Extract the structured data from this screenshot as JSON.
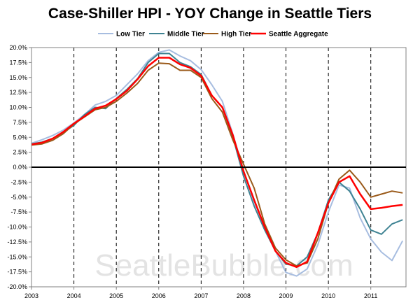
{
  "chart_data": {
    "type": "line",
    "title": "Case-Shiller HPI - YOY Change in Seattle Tiers",
    "watermark": "SeattleBubble.com",
    "xlabel": "",
    "ylabel": "",
    "x_unit": "year",
    "xlim": [
      2003,
      2011.83
    ],
    "ylim": [
      -20,
      20
    ],
    "x_ticks": [
      "2003",
      "2004",
      "2005",
      "2006",
      "2007",
      "2008",
      "2009",
      "2010",
      "2011"
    ],
    "y_ticks": [
      "20.0%",
      "17.5%",
      "15.0%",
      "12.5%",
      "10.0%",
      "7.5%",
      "5.0%",
      "2.5%",
      "0.0%",
      "-2.5%",
      "-5.0%",
      "-7.5%",
      "-10.0%",
      "-12.5%",
      "-15.0%",
      "-17.5%",
      "-20.0%"
    ],
    "y_tick_values": [
      20,
      17.5,
      15,
      12.5,
      10,
      7.5,
      5,
      2.5,
      0,
      -2.5,
      -5,
      -7.5,
      -10,
      -12.5,
      -15,
      -17.5,
      -20
    ],
    "grid": "dashed vertical lines at each year, black zero line",
    "legend_position": "top",
    "series": [
      {
        "name": "Low Tier",
        "color": "#a7bde0",
        "points": [
          [
            2003.0,
            4.0
          ],
          [
            2003.25,
            4.6
          ],
          [
            2003.5,
            5.3
          ],
          [
            2003.75,
            6.2
          ],
          [
            2004.0,
            7.4
          ],
          [
            2004.25,
            8.8
          ],
          [
            2004.5,
            10.4
          ],
          [
            2004.75,
            11.0
          ],
          [
            2005.0,
            12.0
          ],
          [
            2005.25,
            13.8
          ],
          [
            2005.5,
            15.6
          ],
          [
            2005.75,
            17.8
          ],
          [
            2006.0,
            19.2
          ],
          [
            2006.25,
            19.6
          ],
          [
            2006.5,
            18.6
          ],
          [
            2006.75,
            17.8
          ],
          [
            2007.0,
            16.3
          ],
          [
            2007.25,
            13.8
          ],
          [
            2007.5,
            11.0
          ],
          [
            2007.75,
            5.5
          ],
          [
            2008.0,
            -0.5
          ],
          [
            2008.25,
            -5.8
          ],
          [
            2008.5,
            -10.0
          ],
          [
            2008.75,
            -14.0
          ],
          [
            2009.0,
            -17.6
          ],
          [
            2009.25,
            -18.2
          ],
          [
            2009.5,
            -17.0
          ],
          [
            2009.75,
            -13.0
          ],
          [
            2010.0,
            -7.5
          ],
          [
            2010.25,
            -3.0
          ],
          [
            2010.5,
            -3.5
          ],
          [
            2010.75,
            -8.5
          ],
          [
            2011.0,
            -12.0
          ],
          [
            2011.25,
            -14.2
          ],
          [
            2011.5,
            -15.6
          ],
          [
            2011.75,
            -12.3
          ]
        ]
      },
      {
        "name": "Middle Tier",
        "color": "#3f8393",
        "points": [
          [
            2003.0,
            3.9
          ],
          [
            2003.25,
            4.2
          ],
          [
            2003.5,
            4.8
          ],
          [
            2003.75,
            5.8
          ],
          [
            2004.0,
            7.0
          ],
          [
            2004.25,
            8.8
          ],
          [
            2004.5,
            10.0
          ],
          [
            2004.75,
            9.8
          ],
          [
            2005.0,
            11.5
          ],
          [
            2005.25,
            13.0
          ],
          [
            2005.5,
            14.8
          ],
          [
            2005.75,
            17.5
          ],
          [
            2006.0,
            19.0
          ],
          [
            2006.25,
            19.0
          ],
          [
            2006.5,
            17.5
          ],
          [
            2006.75,
            16.8
          ],
          [
            2007.0,
            15.5
          ],
          [
            2007.25,
            12.0
          ],
          [
            2007.5,
            10.0
          ],
          [
            2007.75,
            5.0
          ],
          [
            2008.0,
            -1.5
          ],
          [
            2008.25,
            -6.5
          ],
          [
            2008.5,
            -10.5
          ],
          [
            2008.75,
            -14.0
          ],
          [
            2009.0,
            -16.2
          ],
          [
            2009.25,
            -16.5
          ],
          [
            2009.5,
            -15.0
          ],
          [
            2009.75,
            -11.0
          ],
          [
            2010.0,
            -5.5
          ],
          [
            2010.25,
            -2.5
          ],
          [
            2010.5,
            -4.0
          ],
          [
            2010.75,
            -7.0
          ],
          [
            2011.0,
            -10.5
          ],
          [
            2011.25,
            -11.2
          ],
          [
            2011.5,
            -9.5
          ],
          [
            2011.75,
            -8.8
          ]
        ]
      },
      {
        "name": "High Tier",
        "color": "#9a5a1a",
        "points": [
          [
            2003.0,
            3.7
          ],
          [
            2003.25,
            3.9
          ],
          [
            2003.5,
            4.5
          ],
          [
            2003.75,
            5.6
          ],
          [
            2004.0,
            7.2
          ],
          [
            2004.25,
            8.4
          ],
          [
            2004.5,
            9.6
          ],
          [
            2004.75,
            10.0
          ],
          [
            2005.0,
            11.0
          ],
          [
            2005.25,
            12.4
          ],
          [
            2005.5,
            14.0
          ],
          [
            2005.75,
            16.2
          ],
          [
            2006.0,
            17.4
          ],
          [
            2006.25,
            17.3
          ],
          [
            2006.5,
            16.2
          ],
          [
            2006.75,
            16.2
          ],
          [
            2007.0,
            15.0
          ],
          [
            2007.25,
            11.5
          ],
          [
            2007.5,
            9.2
          ],
          [
            2007.75,
            4.5
          ],
          [
            2008.0,
            0.5
          ],
          [
            2008.25,
            -3.5
          ],
          [
            2008.5,
            -9.5
          ],
          [
            2008.75,
            -13.5
          ],
          [
            2009.0,
            -15.5
          ],
          [
            2009.25,
            -16.5
          ],
          [
            2009.5,
            -16.0
          ],
          [
            2009.75,
            -12.0
          ],
          [
            2010.0,
            -6.0
          ],
          [
            2010.25,
            -2.0
          ],
          [
            2010.5,
            -0.5
          ],
          [
            2010.75,
            -2.5
          ],
          [
            2011.0,
            -5.0
          ],
          [
            2011.25,
            -4.5
          ],
          [
            2011.5,
            -4.0
          ],
          [
            2011.75,
            -4.3
          ]
        ]
      },
      {
        "name": "Seattle Aggregate",
        "color": "#ff0000",
        "points": [
          [
            2003.0,
            3.8
          ],
          [
            2003.25,
            4.1
          ],
          [
            2003.5,
            4.8
          ],
          [
            2003.75,
            5.9
          ],
          [
            2004.0,
            7.3
          ],
          [
            2004.25,
            8.5
          ],
          [
            2004.5,
            9.8
          ],
          [
            2004.75,
            10.3
          ],
          [
            2005.0,
            11.4
          ],
          [
            2005.25,
            12.8
          ],
          [
            2005.5,
            14.7
          ],
          [
            2005.75,
            16.9
          ],
          [
            2006.0,
            18.3
          ],
          [
            2006.25,
            18.3
          ],
          [
            2006.5,
            17.2
          ],
          [
            2006.75,
            16.6
          ],
          [
            2007.0,
            15.3
          ],
          [
            2007.25,
            12.0
          ],
          [
            2007.5,
            10.0
          ],
          [
            2007.75,
            5.3
          ],
          [
            2008.0,
            -0.7
          ],
          [
            2008.25,
            -5.5
          ],
          [
            2008.5,
            -10.0
          ],
          [
            2008.75,
            -14.0
          ],
          [
            2009.0,
            -16.0
          ],
          [
            2009.25,
            -16.7
          ],
          [
            2009.5,
            -15.8
          ],
          [
            2009.75,
            -11.0
          ],
          [
            2010.0,
            -6.0
          ],
          [
            2010.25,
            -2.5
          ],
          [
            2010.5,
            -1.5
          ],
          [
            2010.75,
            -4.5
          ],
          [
            2011.0,
            -7.0
          ],
          [
            2011.25,
            -6.8
          ],
          [
            2011.5,
            -6.5
          ],
          [
            2011.75,
            -6.3
          ]
        ]
      }
    ]
  }
}
